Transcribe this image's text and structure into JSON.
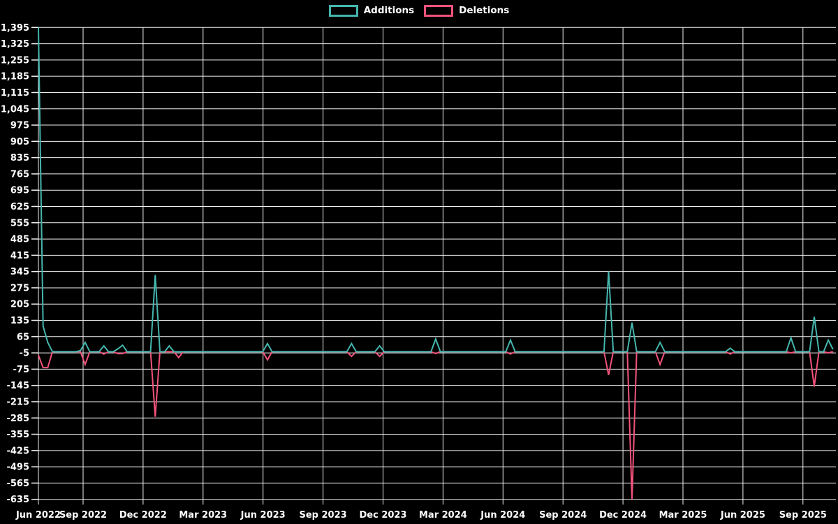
{
  "chart_data": {
    "type": "line",
    "title": "",
    "legend_position": "top",
    "background_color": "#000000",
    "grid": true,
    "gridline_color": "#f2f2f2",
    "series_meta": [
      {
        "name": "Additions",
        "color": "#45b6ae"
      },
      {
        "name": "Deletions",
        "color": "#f4537b"
      }
    ],
    "x_axis": {
      "tick_labels": [
        "Jun 2022",
        "Sep 2022",
        "Dec 2022",
        "Mar 2023",
        "Jun 2023",
        "Sep 2023",
        "Dec 2023",
        "Mar 2024",
        "Jun 2024",
        "Sep 2024",
        "Dec 2024",
        "Mar 2025",
        "Jun 2025",
        "Sep 2025"
      ]
    },
    "y_axis": {
      "min": -635,
      "max": 1395,
      "tick_step": 70,
      "tick_labels": [
        "1,395",
        "1,325",
        "1,255",
        "1,185",
        "1,115",
        "1,045",
        "975",
        "905",
        "835",
        "765",
        "695",
        "625",
        "555",
        "485",
        "415",
        "345",
        "275",
        "205",
        "135",
        "65",
        "-5",
        "-75",
        "-145",
        "-215",
        "-285",
        "-355",
        "-425",
        "-495",
        "-565",
        "-635"
      ]
    },
    "sampling": "weekly",
    "weeks_total": 171,
    "baseline_value": 0,
    "data_points_sparse": [
      {
        "week": 0,
        "additions": 1395,
        "deletions": -15
      },
      {
        "week": 1,
        "additions": 110,
        "deletions": -68
      },
      {
        "week": 2,
        "additions": 40,
        "deletions": -68
      },
      {
        "week": 9,
        "additions": 5,
        "deletions": 0
      },
      {
        "week": 10,
        "additions": 40,
        "deletions": -55
      },
      {
        "week": 14,
        "additions": 25,
        "deletions": -10
      },
      {
        "week": 17,
        "additions": 12,
        "deletions": -8
      },
      {
        "week": 18,
        "additions": 28,
        "deletions": -8
      },
      {
        "week": 25,
        "additions": 330,
        "deletions": -280
      },
      {
        "week": 28,
        "additions": 25,
        "deletions": 0
      },
      {
        "week": 30,
        "additions": 0,
        "deletions": -25
      },
      {
        "week": 49,
        "additions": 35,
        "deletions": -35
      },
      {
        "week": 67,
        "additions": 35,
        "deletions": -20
      },
      {
        "week": 73,
        "additions": 25,
        "deletions": -20
      },
      {
        "week": 85,
        "additions": 55,
        "deletions": -8
      },
      {
        "week": 101,
        "additions": 50,
        "deletions": -10
      },
      {
        "week": 122,
        "additions": 345,
        "deletions": -100
      },
      {
        "week": 127,
        "additions": 125,
        "deletions": -635
      },
      {
        "week": 133,
        "additions": 40,
        "deletions": -55
      },
      {
        "week": 148,
        "additions": 15,
        "deletions": -10
      },
      {
        "week": 161,
        "additions": 60,
        "deletions": -5
      },
      {
        "week": 166,
        "additions": 150,
        "deletions": -150
      },
      {
        "week": 169,
        "additions": 50,
        "deletions": -5
      },
      {
        "week": 170,
        "additions": 10,
        "deletions": 0
      }
    ]
  }
}
